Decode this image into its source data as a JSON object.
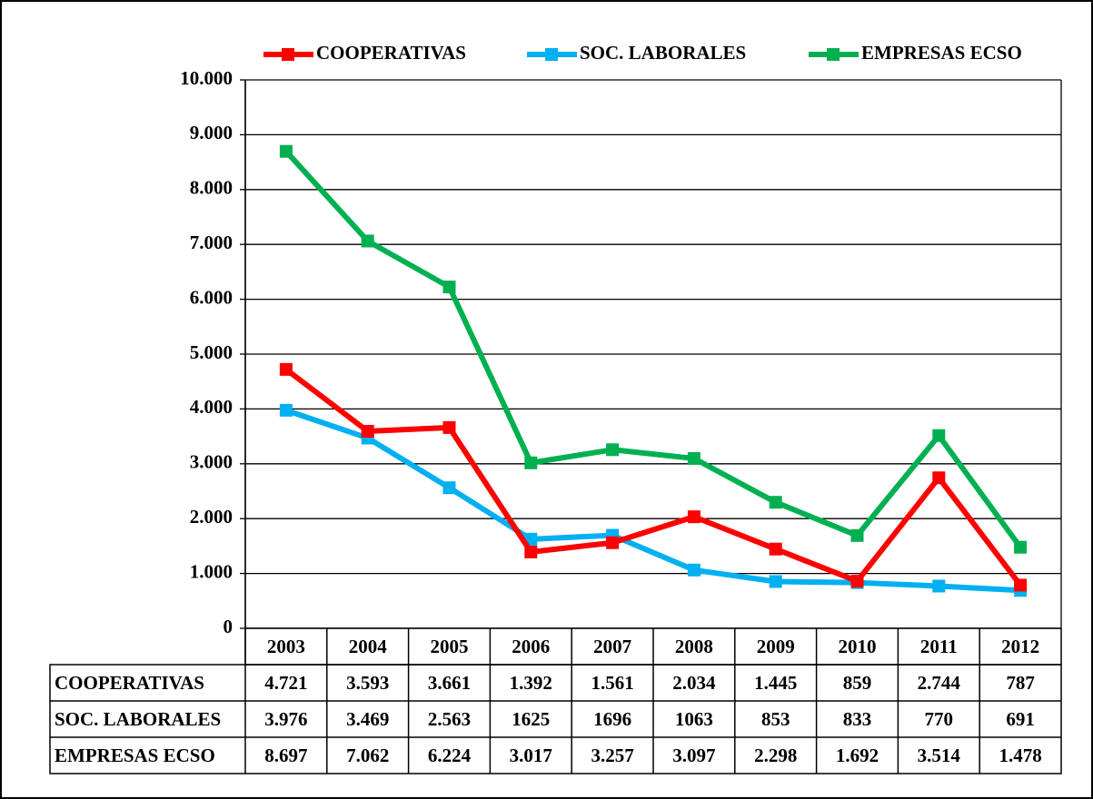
{
  "chart_data": {
    "type": "line",
    "categories": [
      "2003",
      "2004",
      "2005",
      "2006",
      "2007",
      "2008",
      "2009",
      "2010",
      "2011",
      "2012"
    ],
    "series": [
      {
        "name": "COOPERATIVAS",
        "color": "#ff0000",
        "values": [
          4721,
          3593,
          3661,
          1392,
          1561,
          2034,
          1445,
          859,
          2744,
          787
        ],
        "value_labels": [
          "4.721",
          "3.593",
          "3.661",
          "1.392",
          "1.561",
          "2.034",
          "1.445",
          "859",
          "2.744",
          "787"
        ]
      },
      {
        "name": "SOC. LABORALES",
        "color": "#00b0f0",
        "values": [
          3976,
          3469,
          2563,
          1625,
          1696,
          1063,
          853,
          833,
          770,
          691
        ],
        "value_labels": [
          "3.976",
          "3.469",
          "2.563",
          "1625",
          "1696",
          "1063",
          "853",
          "833",
          "770",
          "691"
        ]
      },
      {
        "name": "EMPRESAS ECSO",
        "color": "#00b050",
        "values": [
          8697,
          7062,
          6224,
          3017,
          3257,
          3097,
          2298,
          1692,
          3514,
          1478
        ],
        "value_labels": [
          "8.697",
          "7.062",
          "6.224",
          "3.017",
          "3.257",
          "3.097",
          "2.298",
          "1.692",
          "3.514",
          "1.478"
        ]
      }
    ],
    "ylim": [
      0,
      10000
    ],
    "yticks": [
      0,
      {
        "value": 1000,
        "label": "1.000"
      },
      {
        "value": 2000,
        "label": "2.000"
      },
      {
        "value": 3000,
        "label": "3.000"
      },
      {
        "value": 4000,
        "label": "4.000"
      },
      {
        "value": 5000,
        "label": "5.000"
      },
      {
        "value": 6000,
        "label": "6.000"
      },
      {
        "value": 7000,
        "label": "7.000"
      },
      {
        "value": 8000,
        "label": "8.000"
      },
      {
        "value": 9000,
        "label": "9.000"
      },
      {
        "value": 10000,
        "label": "10.000"
      }
    ],
    "grid": true,
    "legend": "top"
  }
}
